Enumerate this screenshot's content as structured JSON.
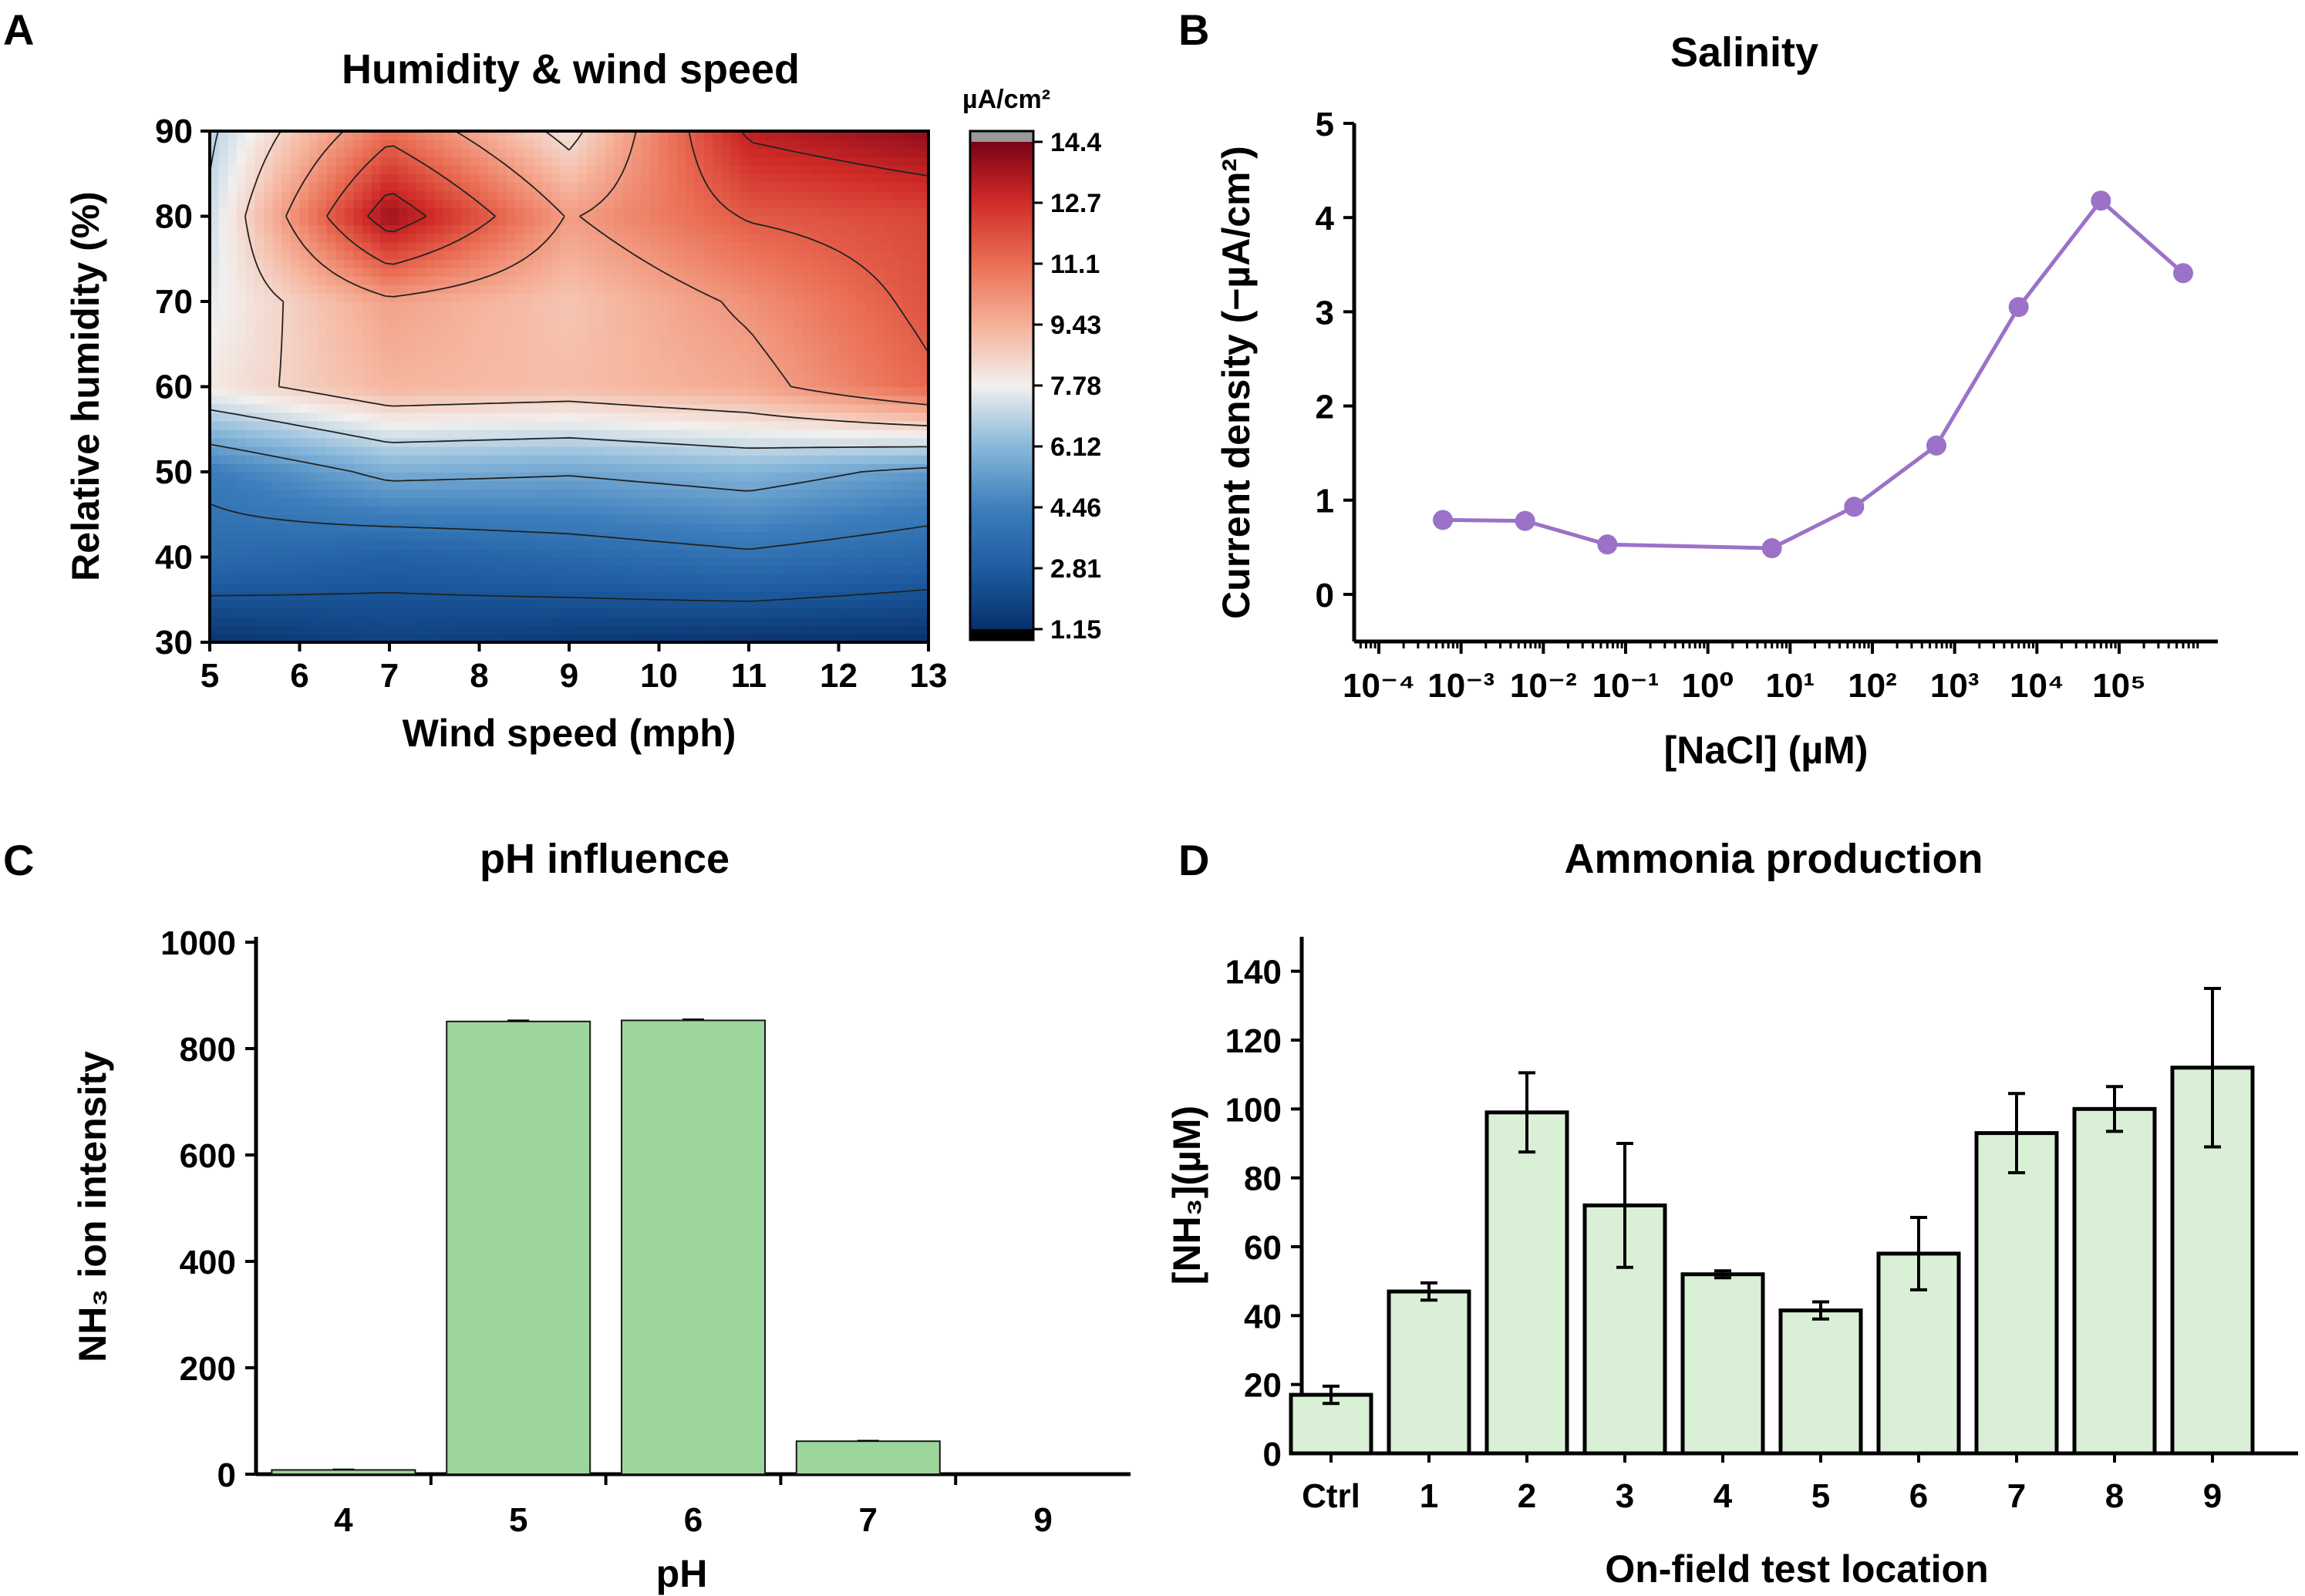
{
  "colors": {
    "line_purple": "#9b72c8",
    "bar_green_c": "#9dd69a",
    "bar_green_d": "#daf0d6",
    "cmap_low": "#0a3f80",
    "cmap_mid": "#f4f1ef",
    "cmap_high": "#7c0315",
    "cbar_over": "#999999",
    "cbar_under": "#000000"
  },
  "panels": {
    "a": {
      "letter": "A"
    },
    "b": {
      "letter": "B"
    },
    "c": {
      "letter": "C"
    },
    "d": {
      "letter": "D"
    }
  },
  "chart_data": [
    {
      "id": "a",
      "type": "heatmap",
      "title": "Humidity & wind speed",
      "xlabel": "Wind speed (mph)",
      "ylabel": "Relative humidity (%)",
      "xlim": [
        5,
        13
      ],
      "ylim": [
        30,
        90
      ],
      "x_ticks": [
        "5",
        "6",
        "7",
        "8",
        "9",
        "10",
        "11",
        "12",
        "13"
      ],
      "y_ticks": [
        "30",
        "40",
        "50",
        "60",
        "70",
        "80",
        "90"
      ],
      "grid_x": [
        5,
        7,
        9,
        11,
        13
      ],
      "grid_y": [
        30,
        40,
        50,
        60,
        70,
        80,
        90
      ],
      "z": [
        [
          1.3,
          1.8,
          1.5,
          1.3,
          1.2
        ],
        [
          3.5,
          3.0,
          3.4,
          3.8,
          3.3
        ],
        [
          4.3,
          5.8,
          5.6,
          6.0,
          5.2
        ],
        [
          8.0,
          9.3,
          9.1,
          9.6,
          11.3
        ],
        [
          7.6,
          9.8,
          8.9,
          10.2,
          11.8
        ],
        [
          7.2,
          13.8,
          9.9,
          11.6,
          12.1
        ],
        [
          6.8,
          11.1,
          8.1,
          13.2,
          14.0
        ]
      ],
      "colorbar": {
        "unit": "µA/cm²",
        "min": 1.15,
        "max": 14.4,
        "ticks": [
          "1.15",
          "2.81",
          "4.46",
          "6.12",
          "7.78",
          "9.43",
          "11.1",
          "12.7",
          "14.4"
        ]
      }
    },
    {
      "id": "b",
      "type": "line",
      "title": "Salinity",
      "xlabel": "[NaCl] (µM)",
      "ylabel": "Current density (−µA/cm²)",
      "x_scale": "log",
      "xlim_log10": [
        -4.3,
        6.2
      ],
      "ylim": [
        -0.5,
        5
      ],
      "x_tick_labels": [
        "10⁻⁴",
        "10⁻³",
        "10⁻²",
        "10⁻¹",
        "10⁰",
        "10¹",
        "10²",
        "10³",
        "10⁴",
        "10⁵"
      ],
      "y_ticks": [
        "0",
        "1",
        "2",
        "3",
        "4",
        "5"
      ],
      "series": [
        {
          "name": "NaCl",
          "x": [
            0.0006,
            0.006,
            0.06,
            6,
            60,
            600,
            6000,
            60000,
            600000
          ],
          "y": [
            0.79,
            0.78,
            0.53,
            0.49,
            0.93,
            1.58,
            3.05,
            4.18,
            3.41
          ]
        }
      ]
    },
    {
      "id": "c",
      "type": "bar",
      "title": "pH influence",
      "xlabel": "pH",
      "ylabel": "NH₃ ion intensity",
      "ylim": [
        0,
        1000
      ],
      "y_ticks": [
        "0",
        "200",
        "400",
        "600",
        "800",
        "1000"
      ],
      "categories": [
        "4",
        "5",
        "6",
        "7",
        "9"
      ],
      "values": [
        8,
        851,
        853,
        62,
        0
      ],
      "errors": [
        1,
        2,
        2,
        1,
        0
      ]
    },
    {
      "id": "d",
      "type": "bar",
      "title": "Ammonia production",
      "xlabel": "On-field test location",
      "ylabel": "[NH₃](µM)",
      "ylim": [
        0,
        150
      ],
      "y_ticks": [
        "0",
        "20",
        "40",
        "60",
        "80",
        "100",
        "120",
        "140"
      ],
      "categories": [
        "Ctrl",
        "1",
        "2",
        "3",
        "4",
        "5",
        "6",
        "7",
        "8",
        "9"
      ],
      "values": [
        17,
        47,
        99,
        72,
        52,
        41.5,
        58,
        93,
        100,
        112
      ],
      "errors": [
        2.5,
        2.5,
        11.5,
        18,
        1,
        2.5,
        10.5,
        11.5,
        6.5,
        23
      ]
    }
  ]
}
